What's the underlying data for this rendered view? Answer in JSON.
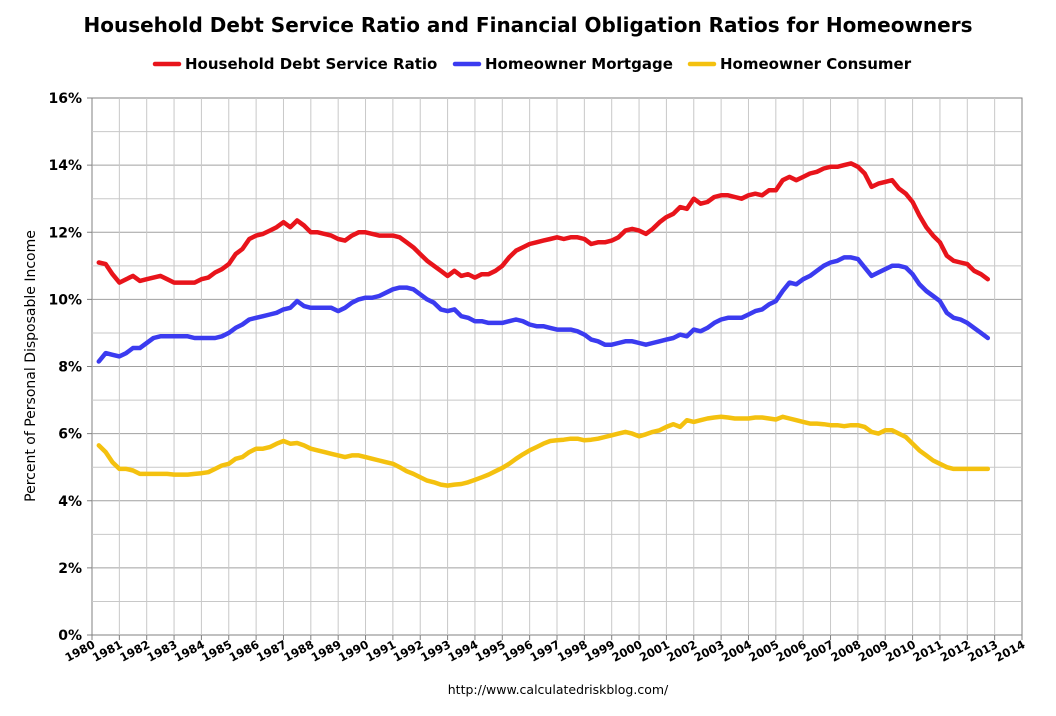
{
  "chart_data": {
    "type": "line",
    "title": "Household Debt Service Ratio and Financial Obligation Ratios for Homeowners",
    "xlabel": "",
    "ylabel": "Percent of Personal Disposable Income",
    "source": "http://www.calculatedriskblog.com/",
    "xlim": [
      1980,
      2014
    ],
    "ylim": [
      0,
      16
    ],
    "x_ticks": [
      "1980",
      "1981",
      "1982",
      "1983",
      "1984",
      "1985",
      "1986",
      "1987",
      "1988",
      "1989",
      "1990",
      "1991",
      "1992",
      "1993",
      "1994",
      "1995",
      "1996",
      "1997",
      "1998",
      "1999",
      "2000",
      "2001",
      "2002",
      "2003",
      "2004",
      "2005",
      "2006",
      "2007",
      "2008",
      "2009",
      "2010",
      "2011",
      "2012",
      "2013",
      "2014"
    ],
    "y_ticks": [
      0,
      2,
      4,
      6,
      8,
      10,
      12,
      14,
      16
    ],
    "y_tick_labels": [
      "0%",
      "2%",
      "4%",
      "6%",
      "8%",
      "10%",
      "12%",
      "14%",
      "16%"
    ],
    "grid": true,
    "legend_position": "top",
    "series": [
      {
        "name": "Household Debt Service Ratio",
        "color": "#e8141b",
        "x": [
          1980.25,
          1980.5,
          1980.75,
          1981,
          1981.25,
          1981.5,
          1981.75,
          1982,
          1982.25,
          1982.5,
          1982.75,
          1983,
          1983.25,
          1983.5,
          1983.75,
          1984,
          1984.25,
          1984.5,
          1984.75,
          1985,
          1985.25,
          1985.5,
          1985.75,
          1986,
          1986.25,
          1986.5,
          1986.75,
          1987,
          1987.25,
          1987.5,
          1987.75,
          1988,
          1988.25,
          1988.5,
          1988.75,
          1989,
          1989.25,
          1989.5,
          1989.75,
          1990,
          1990.25,
          1990.5,
          1990.75,
          1991,
          1991.25,
          1991.5,
          1991.75,
          1992,
          1992.25,
          1992.5,
          1992.75,
          1993,
          1993.25,
          1993.5,
          1993.75,
          1994,
          1994.25,
          1994.5,
          1994.75,
          1995,
          1995.25,
          1995.5,
          1995.75,
          1996,
          1996.25,
          1996.5,
          1996.75,
          1997,
          1997.25,
          1997.5,
          1997.75,
          1998,
          1998.25,
          1998.5,
          1998.75,
          1999,
          1999.25,
          1999.5,
          1999.75,
          2000,
          2000.25,
          2000.5,
          2000.75,
          2001,
          2001.25,
          2001.5,
          2001.75,
          2002,
          2002.25,
          2002.5,
          2002.75,
          2003,
          2003.25,
          2003.5,
          2003.75,
          2004,
          2004.25,
          2004.5,
          2004.75,
          2005,
          2005.25,
          2005.5,
          2005.75,
          2006,
          2006.25,
          2006.5,
          2006.75,
          2007,
          2007.25,
          2007.5,
          2007.75,
          2008,
          2008.25,
          2008.5,
          2008.75,
          2009,
          2009.25,
          2009.5,
          2009.75,
          2010,
          2010.25,
          2010.5,
          2010.75,
          2011,
          2011.25,
          2011.5,
          2011.75,
          2012,
          2012.25,
          2012.5,
          2012.75
        ],
        "values": [
          11.1,
          11.05,
          10.75,
          10.5,
          10.6,
          10.7,
          10.55,
          10.6,
          10.65,
          10.7,
          10.6,
          10.5,
          10.5,
          10.5,
          10.5,
          10.6,
          10.65,
          10.8,
          10.9,
          11.05,
          11.35,
          11.5,
          11.8,
          11.9,
          11.95,
          12.05,
          12.15,
          12.3,
          12.15,
          12.35,
          12.2,
          12.0,
          12.0,
          11.95,
          11.9,
          11.8,
          11.75,
          11.9,
          12.0,
          12.0,
          11.95,
          11.9,
          11.9,
          11.9,
          11.85,
          11.7,
          11.55,
          11.35,
          11.15,
          11.0,
          10.85,
          10.7,
          10.85,
          10.7,
          10.75,
          10.65,
          10.75,
          10.75,
          10.85,
          11.0,
          11.25,
          11.45,
          11.55,
          11.65,
          11.7,
          11.75,
          11.8,
          11.85,
          11.8,
          11.85,
          11.85,
          11.8,
          11.65,
          11.7,
          11.7,
          11.75,
          11.85,
          12.05,
          12.1,
          12.05,
          11.95,
          12.1,
          12.3,
          12.45,
          12.55,
          12.75,
          12.7,
          13.0,
          12.85,
          12.9,
          13.05,
          13.1,
          13.1,
          13.05,
          13.0,
          13.1,
          13.15,
          13.1,
          13.25,
          13.25,
          13.55,
          13.65,
          13.55,
          13.65,
          13.75,
          13.8,
          13.9,
          13.95,
          13.95,
          14.0,
          14.05,
          13.95,
          13.75,
          13.35,
          13.45,
          13.5,
          13.55,
          13.3,
          13.15,
          12.9,
          12.5,
          12.15,
          11.9,
          11.7,
          11.3,
          11.15,
          11.1,
          11.05,
          10.85,
          10.75,
          10.6
        ]
      },
      {
        "name": "Homeowner Mortgage",
        "color": "#3b3bf0",
        "x": [
          1980.25,
          1980.5,
          1980.75,
          1981,
          1981.25,
          1981.5,
          1981.75,
          1982,
          1982.25,
          1982.5,
          1982.75,
          1983,
          1983.25,
          1983.5,
          1983.75,
          1984,
          1984.25,
          1984.5,
          1984.75,
          1985,
          1985.25,
          1985.5,
          1985.75,
          1986,
          1986.25,
          1986.5,
          1986.75,
          1987,
          1987.25,
          1987.5,
          1987.75,
          1988,
          1988.25,
          1988.5,
          1988.75,
          1989,
          1989.25,
          1989.5,
          1989.75,
          1990,
          1990.25,
          1990.5,
          1990.75,
          1991,
          1991.25,
          1991.5,
          1991.75,
          1992,
          1992.25,
          1992.5,
          1992.75,
          1993,
          1993.25,
          1993.5,
          1993.75,
          1994,
          1994.25,
          1994.5,
          1994.75,
          1995,
          1995.25,
          1995.5,
          1995.75,
          1996,
          1996.25,
          1996.5,
          1996.75,
          1997,
          1997.25,
          1997.5,
          1997.75,
          1998,
          1998.25,
          1998.5,
          1998.75,
          1999,
          1999.25,
          1999.5,
          1999.75,
          2000,
          2000.25,
          2000.5,
          2000.75,
          2001,
          2001.25,
          2001.5,
          2001.75,
          2002,
          2002.25,
          2002.5,
          2002.75,
          2003,
          2003.25,
          2003.5,
          2003.75,
          2004,
          2004.25,
          2004.5,
          2004.75,
          2005,
          2005.25,
          2005.5,
          2005.75,
          2006,
          2006.25,
          2006.5,
          2006.75,
          2007,
          2007.25,
          2007.5,
          2007.75,
          2008,
          2008.25,
          2008.5,
          2008.75,
          2009,
          2009.25,
          2009.5,
          2009.75,
          2010,
          2010.25,
          2010.5,
          2010.75,
          2011,
          2011.25,
          2011.5,
          2011.75,
          2012,
          2012.25,
          2012.5,
          2012.75
        ],
        "values": [
          8.15,
          8.4,
          8.35,
          8.3,
          8.4,
          8.55,
          8.55,
          8.7,
          8.85,
          8.9,
          8.9,
          8.9,
          8.9,
          8.9,
          8.85,
          8.85,
          8.85,
          8.85,
          8.9,
          9.0,
          9.15,
          9.25,
          9.4,
          9.45,
          9.5,
          9.55,
          9.6,
          9.7,
          9.75,
          9.95,
          9.8,
          9.75,
          9.75,
          9.75,
          9.75,
          9.65,
          9.75,
          9.9,
          10.0,
          10.05,
          10.05,
          10.1,
          10.2,
          10.3,
          10.35,
          10.35,
          10.3,
          10.15,
          10.0,
          9.9,
          9.7,
          9.65,
          9.7,
          9.5,
          9.45,
          9.35,
          9.35,
          9.3,
          9.3,
          9.3,
          9.35,
          9.4,
          9.35,
          9.25,
          9.2,
          9.2,
          9.15,
          9.1,
          9.1,
          9.1,
          9.05,
          8.95,
          8.8,
          8.75,
          8.65,
          8.65,
          8.7,
          8.75,
          8.75,
          8.7,
          8.65,
          8.7,
          8.75,
          8.8,
          8.85,
          8.95,
          8.9,
          9.1,
          9.05,
          9.15,
          9.3,
          9.4,
          9.45,
          9.45,
          9.45,
          9.55,
          9.65,
          9.7,
          9.85,
          9.95,
          10.25,
          10.5,
          10.45,
          10.6,
          10.7,
          10.85,
          11.0,
          11.1,
          11.15,
          11.25,
          11.25,
          11.2,
          10.95,
          10.7,
          10.8,
          10.9,
          11.0,
          11.0,
          10.95,
          10.75,
          10.45,
          10.25,
          10.1,
          9.95,
          9.6,
          9.45,
          9.4,
          9.3,
          9.15,
          9.0,
          8.85
        ]
      },
      {
        "name": "Homeowner Consumer",
        "color": "#f4c10f",
        "x": [
          1980.25,
          1980.5,
          1980.75,
          1981,
          1981.25,
          1981.5,
          1981.75,
          1982,
          1982.25,
          1982.5,
          1982.75,
          1983,
          1983.25,
          1983.5,
          1983.75,
          1984,
          1984.25,
          1984.5,
          1984.75,
          1985,
          1985.25,
          1985.5,
          1985.75,
          1986,
          1986.25,
          1986.5,
          1986.75,
          1987,
          1987.25,
          1987.5,
          1987.75,
          1988,
          1988.25,
          1988.5,
          1988.75,
          1989,
          1989.25,
          1989.5,
          1989.75,
          1990,
          1990.25,
          1990.5,
          1990.75,
          1991,
          1991.25,
          1991.5,
          1991.75,
          1992,
          1992.25,
          1992.5,
          1992.75,
          1993,
          1993.25,
          1993.5,
          1993.75,
          1994,
          1994.25,
          1994.5,
          1994.75,
          1995,
          1995.25,
          1995.5,
          1995.75,
          1996,
          1996.25,
          1996.5,
          1996.75,
          1997,
          1997.25,
          1997.5,
          1997.75,
          1998,
          1998.25,
          1998.5,
          1998.75,
          1999,
          1999.25,
          1999.5,
          1999.75,
          2000,
          2000.25,
          2000.5,
          2000.75,
          2001,
          2001.25,
          2001.5,
          2001.75,
          2002,
          2002.25,
          2002.5,
          2002.75,
          2003,
          2003.25,
          2003.5,
          2003.75,
          2004,
          2004.25,
          2004.5,
          2004.75,
          2005,
          2005.25,
          2005.5,
          2005.75,
          2006,
          2006.25,
          2006.5,
          2006.75,
          2007,
          2007.25,
          2007.5,
          2007.75,
          2008,
          2008.25,
          2008.5,
          2008.75,
          2009,
          2009.25,
          2009.5,
          2009.75,
          2010,
          2010.25,
          2010.5,
          2010.75,
          2011,
          2011.25,
          2011.5,
          2011.75,
          2012,
          2012.25,
          2012.5,
          2012.75
        ],
        "values": [
          5.65,
          5.45,
          5.15,
          4.95,
          4.95,
          4.9,
          4.8,
          4.8,
          4.8,
          4.8,
          4.8,
          4.78,
          4.78,
          4.78,
          4.8,
          4.82,
          4.85,
          4.95,
          5.05,
          5.1,
          5.25,
          5.3,
          5.45,
          5.55,
          5.55,
          5.6,
          5.7,
          5.78,
          5.7,
          5.72,
          5.65,
          5.55,
          5.5,
          5.45,
          5.4,
          5.35,
          5.3,
          5.35,
          5.35,
          5.3,
          5.25,
          5.2,
          5.15,
          5.1,
          5.0,
          4.88,
          4.8,
          4.7,
          4.6,
          4.55,
          4.48,
          4.45,
          4.48,
          4.5,
          4.55,
          4.62,
          4.7,
          4.78,
          4.88,
          4.98,
          5.1,
          5.25,
          5.38,
          5.5,
          5.6,
          5.7,
          5.78,
          5.8,
          5.82,
          5.85,
          5.85,
          5.8,
          5.82,
          5.85,
          5.9,
          5.95,
          6.0,
          6.05,
          6.0,
          5.92,
          5.98,
          6.05,
          6.1,
          6.2,
          6.28,
          6.2,
          6.4,
          6.35,
          6.4,
          6.45,
          6.48,
          6.5,
          6.48,
          6.45,
          6.45,
          6.45,
          6.48,
          6.48,
          6.45,
          6.42,
          6.5,
          6.45,
          6.4,
          6.35,
          6.3,
          6.3,
          6.28,
          6.25,
          6.25,
          6.22,
          6.25,
          6.25,
          6.2,
          6.05,
          6.0,
          6.1,
          6.1,
          6.0,
          5.9,
          5.7,
          5.5,
          5.35,
          5.2,
          5.1,
          5.0,
          4.95,
          4.95,
          4.95,
          4.95,
          4.95,
          4.95
        ]
      }
    ]
  }
}
